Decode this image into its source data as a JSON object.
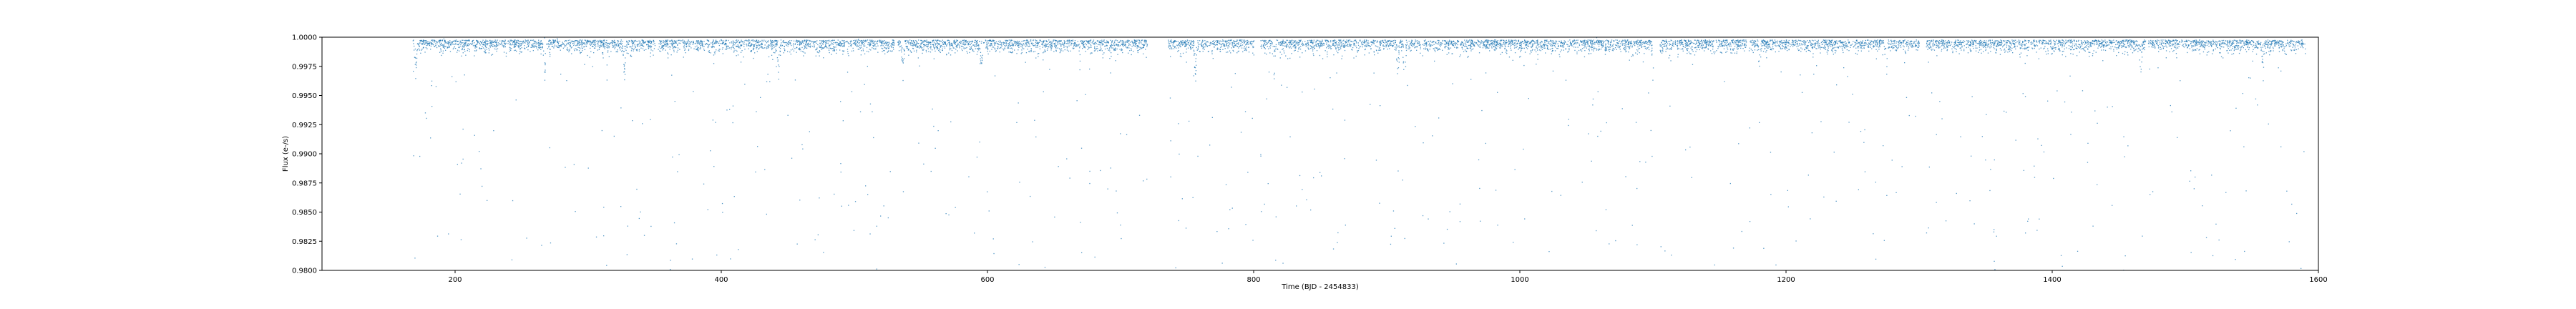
{
  "chart_data": {
    "type": "scatter",
    "title": "",
    "xlabel": "Time (BJD - 2454833)",
    "ylabel": "Flux (e-/s)",
    "xlim": [
      100,
      1600
    ],
    "ylim": [
      0.98,
      1.0
    ],
    "x_ticks": [
      200,
      400,
      600,
      800,
      1000,
      1200,
      1400,
      1600
    ],
    "x_tick_labels": [
      "200",
      "400",
      "600",
      "800",
      "1000",
      "1200",
      "1400",
      "1600"
    ],
    "y_ticks": [
      0.98,
      0.9825,
      0.985,
      0.9875,
      0.99,
      0.9925,
      0.995,
      0.9975,
      1.0
    ],
    "y_tick_labels": [
      "0.9800",
      "0.9825",
      "0.9850",
      "0.9875",
      "0.9900",
      "0.9925",
      "0.9950",
      "0.9975",
      "1.0000"
    ],
    "grid": false,
    "legend": "none",
    "marker_color": "#1f77b4",
    "observing_segments": [
      [
        168,
        350
      ],
      [
        352,
        530
      ],
      [
        532,
        720
      ],
      [
        735,
        800
      ],
      [
        805,
        1100
      ],
      [
        1105,
        1170
      ],
      [
        1172,
        1300
      ],
      [
        1305,
        1470
      ],
      [
        1472,
        1590
      ]
    ],
    "transit_times": [
      170,
      267,
      327,
      443,
      536,
      595,
      728,
      756,
      815,
      908,
      913,
      1100,
      1180,
      1275,
      1466,
      1558
    ],
    "n_points": 9000,
    "baseline_flux": 0.9998,
    "noise_sigma": 0.0005,
    "outlier_fraction": 0.06
  }
}
